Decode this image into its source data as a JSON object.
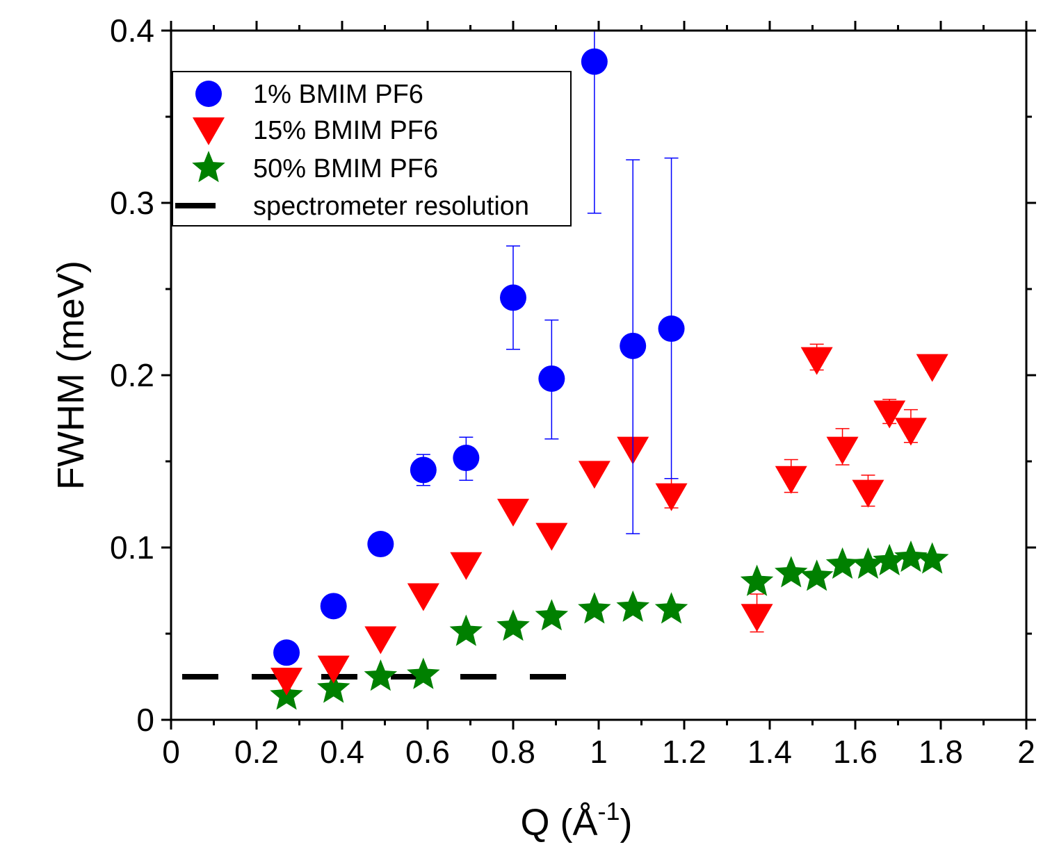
{
  "chart_data": {
    "type": "scatter",
    "title": "",
    "xlabel_main": "Q (Å",
    "xlabel_sup": "-1",
    "xlabel_close": ")",
    "ylabel": "FWHM (meV)",
    "xlim": [
      0,
      2
    ],
    "ylim": [
      0,
      0.4
    ],
    "xticks": [
      0,
      0.2,
      0.4,
      0.6,
      0.8,
      1,
      1.2,
      1.4,
      1.6,
      1.8,
      2
    ],
    "xtick_labels": [
      "0",
      "0.2",
      "0.4",
      "0.6",
      "0.8",
      "1",
      "1.2",
      "1.4",
      "1.6",
      "1.8",
      "2"
    ],
    "yticks": [
      0,
      0.1,
      0.2,
      0.3,
      0.4
    ],
    "ytick_labels": [
      "0",
      "0.1",
      "0.2",
      "0.3",
      "0.4"
    ],
    "grid": false,
    "legend_position": "top-left",
    "series": [
      {
        "name": "1% BMIM PF6",
        "marker": "circle",
        "color": "#0000ff",
        "x": [
          0.27,
          0.38,
          0.49,
          0.59,
          0.69,
          0.8,
          0.89,
          0.99,
          1.08,
          1.17
        ],
        "y": [
          0.039,
          0.066,
          0.102,
          0.145,
          0.152,
          0.245,
          0.198,
          0.382,
          0.217,
          0.227
        ],
        "err_low": [
          0,
          0,
          0,
          0.136,
          0.139,
          0.215,
          0.163,
          0.294,
          0.108,
          0.14
        ],
        "err_high": [
          0,
          0,
          0,
          0.154,
          0.164,
          0.275,
          0.232,
          0.4,
          0.325,
          0.326
        ]
      },
      {
        "name": "15% BMIM PF6",
        "marker": "triangle-down",
        "color": "#ff0000",
        "x": [
          0.27,
          0.38,
          0.49,
          0.59,
          0.69,
          0.8,
          0.89,
          0.99,
          1.08,
          1.17,
          1.37,
          1.45,
          1.51,
          1.57,
          1.63,
          1.68,
          1.73,
          1.78
        ],
        "y": [
          0.023,
          0.03,
          0.047,
          0.072,
          0.09,
          0.121,
          0.107,
          0.143,
          0.157,
          0.13,
          0.06,
          0.14,
          0.209,
          0.157,
          0.132,
          0.178,
          0.168,
          0.205
        ],
        "err_low": [
          0,
          0,
          0,
          0,
          0,
          0,
          0,
          0,
          0,
          0.123,
          0.051,
          0.132,
          0.203,
          0.148,
          0.124,
          0.172,
          0.161,
          0.203
        ],
        "err_high": [
          0,
          0,
          0,
          0,
          0,
          0,
          0,
          0,
          0,
          0.14,
          0.073,
          0.151,
          0.218,
          0.169,
          0.142,
          0.186,
          0.18,
          0.21
        ]
      },
      {
        "name": "50% BMIM PF6",
        "marker": "star",
        "color": "#008000",
        "x": [
          0.27,
          0.38,
          0.49,
          0.59,
          0.69,
          0.8,
          0.89,
          0.99,
          1.08,
          1.17,
          1.37,
          1.45,
          1.51,
          1.57,
          1.63,
          1.68,
          1.73,
          1.78
        ],
        "y": [
          0.014,
          0.018,
          0.025,
          0.026,
          0.051,
          0.054,
          0.06,
          0.064,
          0.065,
          0.064,
          0.08,
          0.085,
          0.083,
          0.09,
          0.09,
          0.092,
          0.094,
          0.093
        ]
      },
      {
        "name": "spectrometer resolution",
        "marker": "dash-line",
        "color": "#000000",
        "x": [
          0,
          1
        ],
        "y": [
          0.025,
          0.025
        ]
      }
    ]
  }
}
